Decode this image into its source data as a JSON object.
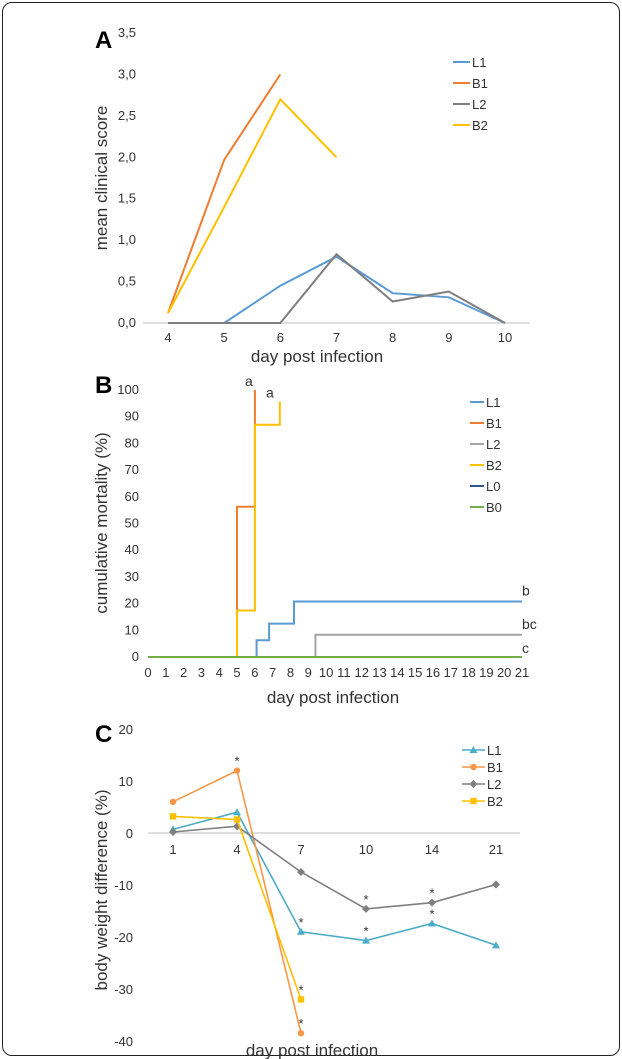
{
  "panels": {
    "A": {
      "letter": "A"
    },
    "B": {
      "letter": "B"
    },
    "C": {
      "letter": "C"
    }
  },
  "chart_data": [
    {
      "type": "line",
      "panel": "A",
      "xlabel": "day post infection",
      "ylabel": "mean clinical score",
      "x": [
        4,
        5,
        6,
        7,
        8,
        9,
        10
      ],
      "ylim": [
        0,
        3.5
      ],
      "yticks": [
        "0,0",
        "0,5",
        "1,0",
        "1,5",
        "2,0",
        "2,5",
        "3,0",
        "3,5"
      ],
      "xticks": [
        "4",
        "5",
        "6",
        "7",
        "8",
        "9",
        "10"
      ],
      "legend_position": "top-right",
      "series": [
        {
          "name": "L1",
          "color": "#5B9BD5",
          "x": [
            4,
            5,
            6,
            7,
            8,
            9,
            10
          ],
          "values": [
            0,
            0,
            0.45,
            0.8,
            0.36,
            0.31,
            0
          ]
        },
        {
          "name": "B1",
          "color": "#ED7D31",
          "x": [
            4,
            5,
            6
          ],
          "values": [
            0.12,
            1.97,
            3.0
          ]
        },
        {
          "name": "L2",
          "color": "#7F7F7F",
          "x": [
            4,
            5,
            6,
            7,
            8,
            9,
            10
          ],
          "values": [
            0,
            0,
            0,
            0.83,
            0.26,
            0.38,
            0
          ]
        },
        {
          "name": "B2",
          "color": "#FFC000",
          "x": [
            4,
            5,
            6,
            7
          ],
          "values": [
            0.12,
            1.4,
            2.7,
            2.0
          ]
        }
      ]
    },
    {
      "type": "line",
      "step": true,
      "panel": "B",
      "xlabel": "day post infection",
      "ylabel": "cumulative mortality (%)",
      "xlim": [
        0,
        21
      ],
      "ylim": [
        0,
        100
      ],
      "xticks": [
        "0",
        "1",
        "2",
        "3",
        "4",
        "5",
        "6",
        "7",
        "8",
        "9",
        "10",
        "11",
        "12",
        "13",
        "14",
        "15",
        "16",
        "17",
        "18",
        "19",
        "20",
        "21"
      ],
      "yticks": [
        "0",
        "10",
        "20",
        "30",
        "40",
        "50",
        "60",
        "70",
        "80",
        "90",
        "100"
      ],
      "legend_position": "top-right",
      "series": [
        {
          "name": "L1",
          "color": "#5B9BD5",
          "x": [
            0,
            6.1,
            6.8,
            7.5,
            8.2,
            21
          ],
          "values": [
            0,
            6.3,
            12.5,
            12.5,
            20.8,
            20.8
          ],
          "label": "b"
        },
        {
          "name": "B1",
          "color": "#ED7D31",
          "x": [
            0,
            5,
            6,
            6
          ],
          "values": [
            0,
            56.3,
            56.3,
            100
          ],
          "label": "a"
        },
        {
          "name": "L2",
          "color": "#A5A5A5",
          "x": [
            0,
            9.4,
            21
          ],
          "values": [
            0,
            8.3,
            8.3
          ],
          "label": "bc"
        },
        {
          "name": "B2",
          "color": "#FFC000",
          "x": [
            0,
            5,
            6,
            6,
            7.4
          ],
          "values": [
            0,
            17.4,
            17.4,
            87,
            95.7
          ],
          "label": "a"
        },
        {
          "name": "L0",
          "color": "#2F5597",
          "x": [
            0,
            21
          ],
          "values": [
            0,
            0
          ],
          "label": "c"
        },
        {
          "name": "B0",
          "color": "#70AD47",
          "x": [
            0,
            21
          ],
          "values": [
            0,
            0
          ]
        }
      ]
    },
    {
      "type": "line",
      "panel": "C",
      "xlabel": "day post infection",
      "ylabel": "body weight difference (%)",
      "categories": [
        "1",
        "4",
        "7",
        "10",
        "14",
        "21"
      ],
      "ylim": [
        -40,
        20
      ],
      "yticks": [
        "-40",
        "-30",
        "-20",
        "-10",
        "0",
        "10",
        "20"
      ],
      "legend_position": "top-right",
      "series": [
        {
          "name": "L1",
          "color": "#4BACC6",
          "marker": "triangle",
          "values": [
            0.7,
            4,
            -19,
            -20.7,
            -17.4,
            -21.6
          ],
          "significant": [
            false,
            false,
            true,
            true,
            true,
            false
          ]
        },
        {
          "name": "B1",
          "color": "#F79646",
          "marker": "circle",
          "values": [
            6,
            12,
            -38.5,
            null,
            null,
            null
          ],
          "significant": [
            false,
            true,
            true,
            false,
            false,
            false
          ]
        },
        {
          "name": "L2",
          "color": "#7F7F7F",
          "marker": "diamond",
          "values": [
            0.2,
            1.3,
            -7.5,
            -14.6,
            -13.4,
            -9.9
          ],
          "significant": [
            false,
            false,
            false,
            true,
            true,
            false
          ]
        },
        {
          "name": "B2",
          "color": "#FFC000",
          "marker": "square",
          "values": [
            3.2,
            2.6,
            -32,
            null,
            null,
            null
          ],
          "significant": [
            false,
            false,
            true,
            false,
            false,
            false
          ]
        }
      ],
      "significance_symbol": "*"
    }
  ]
}
